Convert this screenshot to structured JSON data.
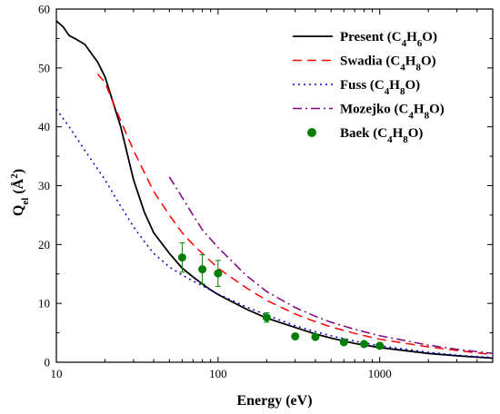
{
  "chart_data": {
    "type": "line",
    "xlabel": "Energy (eV)",
    "ylabel": {
      "main": "Q",
      "sub": "el",
      "rest": " (Å",
      "sup": "2",
      "end": ")"
    },
    "xscale": "log",
    "xlim": [
      10,
      5000
    ],
    "ylim": [
      0,
      60
    ],
    "xticks": [
      10,
      100,
      1000
    ],
    "xtick_labels": [
      "10",
      "100",
      "1000"
    ],
    "yticks": [
      0,
      10,
      20,
      30,
      40,
      50,
      60
    ],
    "ytick_labels": [
      "0",
      "10",
      "20",
      "30",
      "40",
      "50",
      "60"
    ],
    "grid": false,
    "legend_position": "top-right",
    "series": [
      {
        "name_parts": [
          "Present (C",
          "4",
          "H",
          "6",
          "O)"
        ],
        "style": "solid",
        "color": "#000000",
        "points": [
          [
            10,
            58
          ],
          [
            11,
            57
          ],
          [
            12,
            55.5
          ],
          [
            13,
            55
          ],
          [
            15,
            54
          ],
          [
            18,
            51
          ],
          [
            20,
            48.5
          ],
          [
            25,
            40
          ],
          [
            30,
            31
          ],
          [
            35,
            25.5
          ],
          [
            40,
            22
          ],
          [
            50,
            18.5
          ],
          [
            60,
            16
          ],
          [
            70,
            14.5
          ],
          [
            80,
            13.3
          ],
          [
            90,
            12.3
          ],
          [
            100,
            11.5
          ],
          [
            150,
            9
          ],
          [
            200,
            7.5
          ],
          [
            300,
            5.9
          ],
          [
            400,
            4.8
          ],
          [
            500,
            4.1
          ],
          [
            700,
            3.2
          ],
          [
            1000,
            2.5
          ],
          [
            2000,
            1.5
          ],
          [
            3000,
            1.1
          ],
          [
            5000,
            0.7
          ]
        ]
      },
      {
        "name_parts": [
          "Swadia (C",
          "4",
          "H",
          "8",
          "O)"
        ],
        "style": "dash",
        "color": "#ff0000",
        "points": [
          [
            18,
            49
          ],
          [
            20,
            47.5
          ],
          [
            25,
            41
          ],
          [
            30,
            36
          ],
          [
            40,
            29
          ],
          [
            50,
            25
          ],
          [
            60,
            22
          ],
          [
            70,
            20
          ],
          [
            80,
            18.5
          ],
          [
            100,
            16
          ],
          [
            150,
            12.6
          ],
          [
            200,
            10.5
          ],
          [
            300,
            8.2
          ],
          [
            400,
            6.9
          ],
          [
            500,
            6
          ],
          [
            700,
            4.9
          ],
          [
            1000,
            3.9
          ],
          [
            2000,
            2.6
          ],
          [
            3000,
            2
          ],
          [
            5000,
            1.3
          ]
        ]
      },
      {
        "name_parts": [
          "Fuss (C",
          "4",
          "H",
          "8",
          "O)"
        ],
        "style": "dot",
        "color": "#0000cc",
        "points": [
          [
            10,
            43
          ],
          [
            12,
            40
          ],
          [
            15,
            36
          ],
          [
            20,
            31
          ],
          [
            25,
            26.5
          ],
          [
            30,
            23
          ],
          [
            35,
            20.5
          ],
          [
            40,
            18.5
          ],
          [
            50,
            16.2
          ],
          [
            60,
            14.8
          ],
          [
            70,
            13.8
          ],
          [
            80,
            13
          ],
          [
            100,
            11.6
          ],
          [
            150,
            9.4
          ],
          [
            200,
            8
          ],
          [
            300,
            6.2
          ],
          [
            400,
            5.2
          ],
          [
            500,
            4.5
          ],
          [
            700,
            3.6
          ],
          [
            1000,
            2.8
          ],
          [
            2000,
            1.7
          ],
          [
            3000,
            1.2
          ],
          [
            5000,
            0.8
          ]
        ]
      },
      {
        "name_parts": [
          "Mozejko (C",
          "4",
          "H",
          "8",
          "O)"
        ],
        "style": "dashdot",
        "color": "#800080",
        "points": [
          [
            50,
            31.5
          ],
          [
            60,
            28
          ],
          [
            70,
            25
          ],
          [
            80,
            22.5
          ],
          [
            100,
            19.5
          ],
          [
            150,
            14.7
          ],
          [
            200,
            12
          ],
          [
            300,
            9.3
          ],
          [
            400,
            7.8
          ],
          [
            500,
            6.8
          ],
          [
            700,
            5.6
          ],
          [
            1000,
            4.5
          ],
          [
            2000,
            2.9
          ],
          [
            3000,
            2.2
          ],
          [
            5000,
            1.5
          ]
        ]
      },
      {
        "name_parts": [
          "Baek (C",
          "4",
          "H",
          "8",
          "O)"
        ],
        "style": "marker",
        "color": "#008000",
        "points": [
          [
            60,
            17.8
          ],
          [
            80,
            15.8
          ],
          [
            100,
            15.1
          ],
          [
            200,
            7.6
          ],
          [
            300,
            4.4
          ],
          [
            400,
            4.3
          ],
          [
            600,
            3.4
          ],
          [
            800,
            3.1
          ],
          [
            1000,
            2.8
          ]
        ],
        "errors": [
          2.5,
          2.5,
          2.2,
          0.8,
          0.3,
          0.3,
          0.2,
          0.2,
          0.2
        ]
      }
    ]
  }
}
